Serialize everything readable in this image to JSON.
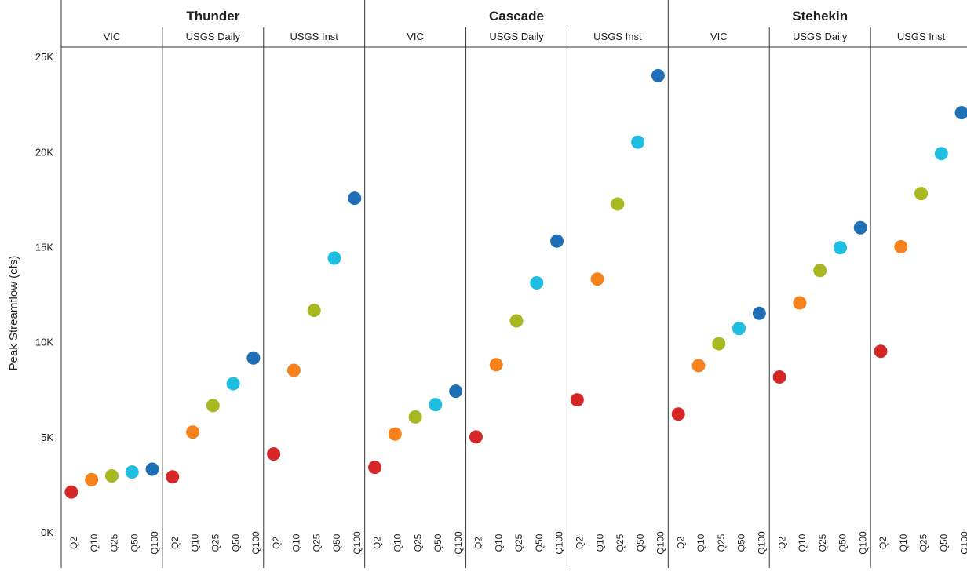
{
  "chart_data": {
    "type": "scatter",
    "ylabel": "Peak Streamflow (cfs)",
    "ylim": [
      0,
      25500
    ],
    "yticks": [
      0,
      5000,
      10000,
      15000,
      20000,
      25000
    ],
    "ytick_labels": [
      "0K",
      "5K",
      "10K",
      "15K",
      "20K",
      "25K"
    ],
    "grid": false,
    "legend": "none",
    "categories": [
      "Q2",
      "Q10",
      "Q25",
      "Q50",
      "Q100"
    ],
    "category_colors": {
      "Q2": "#d62728",
      "Q10": "#f7811b",
      "Q25": "#a7b820",
      "Q50": "#1fbde0",
      "Q100": "#1f6fb7"
    },
    "sites": [
      {
        "name": "Thunder",
        "sources": [
          {
            "name": "VIC",
            "values": [
              2100,
              2750,
              2950,
              3150,
              3300
            ]
          },
          {
            "name": "USGS Daily",
            "values": [
              2900,
              5250,
              6650,
              7800,
              9150
            ]
          },
          {
            "name": "USGS Inst",
            "values": [
              4100,
              8500,
              11650,
              14400,
              17550
            ]
          }
        ]
      },
      {
        "name": "Cascade",
        "sources": [
          {
            "name": "VIC",
            "values": [
              3400,
              5150,
              6050,
              6700,
              7400
            ]
          },
          {
            "name": "USGS Daily",
            "values": [
              5000,
              8800,
              11100,
              13100,
              15300
            ]
          },
          {
            "name": "USGS Inst",
            "values": [
              6950,
              13300,
              17250,
              20500,
              24000
            ]
          }
        ]
      },
      {
        "name": "Stehekin",
        "sources": [
          {
            "name": "VIC",
            "values": [
              6200,
              8750,
              9900,
              10700,
              11500
            ]
          },
          {
            "name": "USGS Daily",
            "values": [
              8150,
              12050,
              13750,
              14950,
              16000
            ]
          },
          {
            "name": "USGS Inst",
            "values": [
              9500,
              15000,
              17800,
              19900,
              22050
            ]
          }
        ]
      }
    ]
  }
}
